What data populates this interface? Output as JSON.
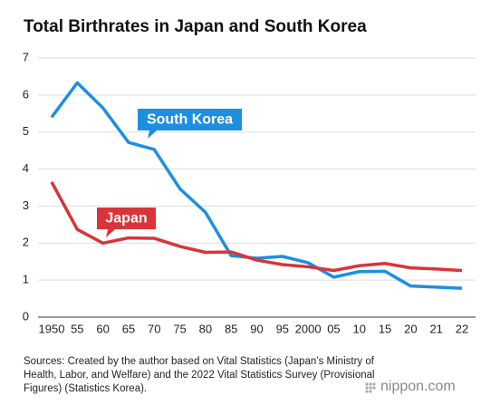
{
  "chart_data": {
    "type": "line",
    "title": "Total Birthrates in Japan and South Korea",
    "categories": [
      "1950",
      "55",
      "60",
      "65",
      "70",
      "75",
      "80",
      "85",
      "90",
      "95",
      "2000",
      "05",
      "10",
      "15",
      "20",
      "21",
      "22"
    ],
    "series": [
      {
        "name": "South Korea",
        "color": "#1e8fe0",
        "values": [
          5.4,
          6.33,
          5.65,
          4.72,
          4.53,
          3.47,
          2.83,
          1.66,
          1.59,
          1.64,
          1.47,
          1.08,
          1.23,
          1.24,
          0.84,
          0.81,
          0.78
        ]
      },
      {
        "name": "Japan",
        "color": "#d9343a",
        "values": [
          3.65,
          2.37,
          2.0,
          2.14,
          2.13,
          1.91,
          1.75,
          1.76,
          1.54,
          1.42,
          1.36,
          1.26,
          1.39,
          1.45,
          1.33,
          1.3,
          1.26
        ]
      }
    ],
    "ylim": [
      0,
      7
    ],
    "yticks": [
      0,
      1,
      2,
      3,
      4,
      5,
      6,
      7
    ],
    "grid": true,
    "source": "Sources: Created by the author based on Vital Statistics (Japan’s Ministry of Health, Labor, and Welfare) and the 2022 Vital Statistics Survey (Provisional Figures) (Statistics Korea).",
    "logo": "nippon.com"
  }
}
